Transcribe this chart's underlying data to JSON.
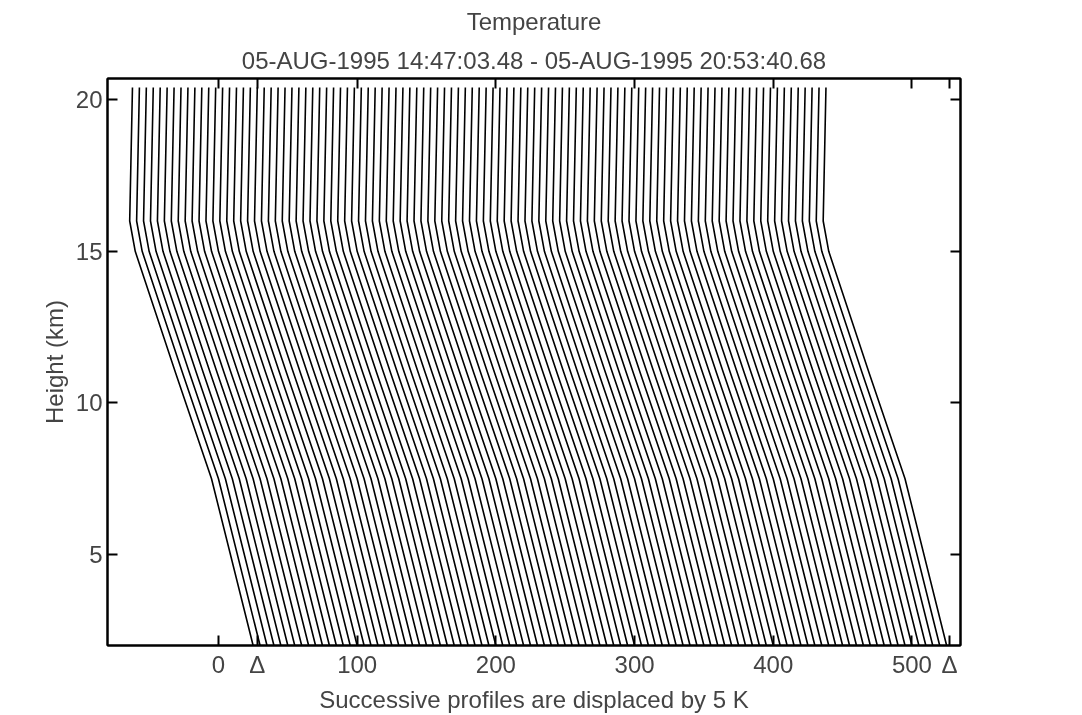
{
  "chart_data": {
    "type": "line",
    "title": "Temperature",
    "subtitle": "05-AUG-1995 14:47:03.48 - 05-AUG-1995 20:53:40.68",
    "xlabel": "Successive profiles are displaced by 5 K",
    "ylabel": "Height (km)",
    "xlim": [
      -80,
      535
    ],
    "ylim": [
      2,
      20.7
    ],
    "xticks": [
      0,
      {
        "value": 28,
        "label": "Δ"
      },
      100,
      200,
      300,
      400,
      500,
      {
        "value": 527,
        "label": "Δ"
      }
    ],
    "yticks": [
      5,
      10,
      15,
      20
    ],
    "grid": false,
    "line_style": "solid",
    "series": [
      {
        "color": "#000000",
        "x": [
          25,
          -5,
          -31,
          -60,
          -64,
          -62
        ],
        "values": [
          2,
          7.5,
          11,
          15,
          16,
          20.4
        ]
      },
      {
        "color": "#000000",
        "x": [
          30,
          0,
          -26,
          -55,
          -59,
          -57
        ],
        "values": [
          2,
          7.5,
          11,
          15,
          16,
          20.4
        ]
      },
      {
        "color": "#000000",
        "x": [
          35,
          5,
          -21,
          -50,
          -54,
          -52
        ],
        "values": [
          2,
          7.5,
          11,
          15,
          16,
          20.4
        ]
      },
      {
        "color": "#000000",
        "x": [
          40,
          10,
          -16,
          -45,
          -49,
          -47
        ],
        "values": [
          2,
          7.5,
          11,
          15,
          16,
          20.4
        ]
      },
      {
        "color": "#000000",
        "x": [
          45,
          15,
          -11,
          -40,
          -44,
          -42
        ],
        "values": [
          2,
          7.5,
          11,
          15,
          16,
          20.4
        ]
      },
      {
        "color": "#000000",
        "x": [
          50,
          20,
          -6,
          -35,
          -39,
          -37
        ],
        "values": [
          2,
          7.5,
          11,
          15,
          16,
          20.4
        ]
      },
      {
        "color": "#000000",
        "x": [
          55,
          25,
          -1,
          -30,
          -34,
          -32
        ],
        "values": [
          2,
          7.5,
          11,
          15,
          16,
          20.4
        ]
      },
      {
        "color": "#000000",
        "x": [
          60,
          30,
          4,
          -25,
          -29,
          -27
        ],
        "values": [
          2,
          7.5,
          11,
          15,
          16,
          20.4
        ]
      },
      {
        "color": "#000000",
        "x": [
          65,
          35,
          9,
          -20,
          -24,
          -22
        ],
        "values": [
          2,
          7.5,
          11,
          15,
          16,
          20.4
        ]
      },
      {
        "color": "#000000",
        "x": [
          70,
          40,
          14,
          -15,
          -19,
          -17
        ],
        "values": [
          2,
          7.5,
          11,
          15,
          16,
          20.4
        ]
      },
      {
        "color": "#000000",
        "x": [
          75,
          45,
          19,
          -10,
          -14,
          -12
        ],
        "values": [
          2,
          7.5,
          11,
          15,
          16,
          20.4
        ]
      },
      {
        "color": "#000000",
        "x": [
          80,
          50,
          24,
          -5,
          -9,
          -7
        ],
        "values": [
          2,
          7.5,
          11,
          15,
          16,
          20.4
        ]
      },
      {
        "color": "#000000",
        "x": [
          85,
          55,
          29,
          0,
          -4,
          -2
        ],
        "values": [
          2,
          7.5,
          11,
          15,
          16,
          20.4
        ]
      },
      {
        "color": "#000000",
        "x": [
          90,
          60,
          34,
          5,
          1,
          3
        ],
        "values": [
          2,
          7.5,
          11,
          15,
          16,
          20.4
        ]
      },
      {
        "color": "#000000",
        "x": [
          95,
          65,
          39,
          10,
          6,
          8
        ],
        "values": [
          2,
          7.5,
          11,
          15,
          16,
          20.4
        ]
      },
      {
        "color": "#000000",
        "x": [
          100,
          70,
          44,
          15,
          11,
          13
        ],
        "values": [
          2,
          7.5,
          11,
          15,
          16,
          20.4
        ]
      },
      {
        "color": "#000000",
        "x": [
          105,
          75,
          49,
          20,
          16,
          18
        ],
        "values": [
          2,
          7.5,
          11,
          15,
          16,
          20.4
        ]
      },
      {
        "color": "#000000",
        "x": [
          110,
          80,
          54,
          25,
          21,
          23
        ],
        "values": [
          2,
          7.5,
          11,
          15,
          16,
          20.4
        ]
      },
      {
        "color": "#000000",
        "x": [
          115,
          85,
          59,
          30,
          26,
          28
        ],
        "values": [
          2,
          7.5,
          11,
          15,
          16,
          20.4
        ]
      },
      {
        "color": "#000000",
        "x": [
          120,
          90,
          64,
          35,
          31,
          33
        ],
        "values": [
          2,
          7.5,
          11,
          15,
          16,
          20.4
        ]
      },
      {
        "color": "#000000",
        "x": [
          125,
          95,
          69,
          40,
          36,
          38
        ],
        "values": [
          2,
          7.5,
          11,
          15,
          16,
          20.4
        ]
      },
      {
        "color": "#000000",
        "x": [
          130,
          100,
          74,
          45,
          41,
          43
        ],
        "values": [
          2,
          7.5,
          11,
          15,
          16,
          20.4
        ]
      },
      {
        "color": "#000000",
        "x": [
          135,
          105,
          79,
          50,
          46,
          48
        ],
        "values": [
          2,
          7.5,
          11,
          15,
          16,
          20.4
        ]
      },
      {
        "color": "#000000",
        "x": [
          140,
          110,
          84,
          55,
          51,
          53
        ],
        "values": [
          2,
          7.5,
          11,
          15,
          16,
          20.4
        ]
      },
      {
        "color": "#000000",
        "x": [
          145,
          115,
          89,
          60,
          56,
          58
        ],
        "values": [
          2,
          7.5,
          11,
          15,
          16,
          20.4
        ]
      },
      {
        "color": "#000000",
        "x": [
          150,
          120,
          94,
          65,
          61,
          63
        ],
        "values": [
          2,
          7.5,
          11,
          15,
          16,
          20.4
        ]
      },
      {
        "color": "#000000",
        "x": [
          155,
          125,
          99,
          70,
          66,
          68
        ],
        "values": [
          2,
          7.5,
          11,
          15,
          16,
          20.4
        ]
      },
      {
        "color": "#000000",
        "x": [
          160,
          130,
          104,
          75,
          71,
          73
        ],
        "values": [
          2,
          7.5,
          11,
          15,
          16,
          20.4
        ]
      },
      {
        "color": "#000000",
        "x": [
          165,
          135,
          109,
          80,
          76,
          78
        ],
        "values": [
          2,
          7.5,
          11,
          15,
          16,
          20.4
        ]
      },
      {
        "color": "#000000",
        "x": [
          170,
          140,
          114,
          85,
          81,
          83
        ],
        "values": [
          2,
          7.5,
          11,
          15,
          16,
          20.4
        ]
      },
      {
        "color": "#000000",
        "x": [
          175,
          145,
          119,
          90,
          86,
          88
        ],
        "values": [
          2,
          7.5,
          11,
          15,
          16,
          20.4
        ]
      },
      {
        "color": "#000000",
        "x": [
          180,
          150,
          124,
          95,
          91,
          93
        ],
        "values": [
          2,
          7.5,
          11,
          15,
          16,
          20.4
        ]
      },
      {
        "color": "#000000",
        "x": [
          185,
          155,
          129,
          100,
          96,
          98
        ],
        "values": [
          2,
          7.5,
          11,
          15,
          16,
          20.4
        ]
      },
      {
        "color": "#000000",
        "x": [
          190,
          160,
          134,
          105,
          101,
          103
        ],
        "values": [
          2,
          7.5,
          11,
          15,
          16,
          20.4
        ]
      },
      {
        "color": "#000000",
        "x": [
          195,
          165,
          139,
          110,
          106,
          108
        ],
        "values": [
          2,
          7.5,
          11,
          15,
          16,
          20.4
        ]
      },
      {
        "color": "#000000",
        "x": [
          200,
          170,
          144,
          115,
          111,
          113
        ],
        "values": [
          2,
          7.5,
          11,
          15,
          16,
          20.4
        ]
      },
      {
        "color": "#000000",
        "x": [
          205,
          175,
          149,
          120,
          116,
          118
        ],
        "values": [
          2,
          7.5,
          11,
          15,
          16,
          20.4
        ]
      },
      {
        "color": "#000000",
        "x": [
          210,
          180,
          154,
          125,
          121,
          123
        ],
        "values": [
          2,
          7.5,
          11,
          15,
          16,
          20.4
        ]
      },
      {
        "color": "#000000",
        "x": [
          215,
          185,
          159,
          130,
          126,
          128
        ],
        "values": [
          2,
          7.5,
          11,
          15,
          16,
          20.4
        ]
      },
      {
        "color": "#000000",
        "x": [
          220,
          190,
          164,
          135,
          131,
          133
        ],
        "values": [
          2,
          7.5,
          11,
          15,
          16,
          20.4
        ]
      },
      {
        "color": "#000000",
        "x": [
          225,
          195,
          169,
          140,
          136,
          138
        ],
        "values": [
          2,
          7.5,
          11,
          15,
          16,
          20.4
        ]
      },
      {
        "color": "#000000",
        "x": [
          230,
          200,
          174,
          145,
          141,
          143
        ],
        "values": [
          2,
          7.5,
          11,
          15,
          16,
          20.4
        ]
      },
      {
        "color": "#000000",
        "x": [
          235,
          205,
          179,
          150,
          146,
          148
        ],
        "values": [
          2,
          7.5,
          11,
          15,
          16,
          20.4
        ]
      },
      {
        "color": "#000000",
        "x": [
          240,
          210,
          184,
          155,
          151,
          153
        ],
        "values": [
          2,
          7.5,
          11,
          15,
          16,
          20.4
        ]
      },
      {
        "color": "#000000",
        "x": [
          245,
          215,
          189,
          160,
          156,
          158
        ],
        "values": [
          2,
          7.5,
          11,
          15,
          16,
          20.4
        ]
      },
      {
        "color": "#000000",
        "x": [
          250,
          220,
          194,
          165,
          161,
          163
        ],
        "values": [
          2,
          7.5,
          11,
          15,
          16,
          20.4
        ]
      },
      {
        "color": "#000000",
        "x": [
          255,
          225,
          199,
          170,
          166,
          168
        ],
        "values": [
          2,
          7.5,
          11,
          15,
          16,
          20.4
        ]
      },
      {
        "color": "#000000",
        "x": [
          260,
          230,
          204,
          175,
          171,
          173
        ],
        "values": [
          2,
          7.5,
          11,
          15,
          16,
          20.4
        ]
      },
      {
        "color": "#000000",
        "x": [
          265,
          235,
          209,
          180,
          176,
          178
        ],
        "values": [
          2,
          7.5,
          11,
          15,
          16,
          20.4
        ]
      },
      {
        "color": "#000000",
        "x": [
          270,
          240,
          214,
          185,
          181,
          183
        ],
        "values": [
          2,
          7.5,
          11,
          15,
          16,
          20.4
        ]
      },
      {
        "color": "#000000",
        "x": [
          275,
          245,
          219,
          190,
          186,
          188
        ],
        "values": [
          2,
          7.5,
          11,
          15,
          16,
          20.4
        ]
      },
      {
        "color": "#000000",
        "x": [
          280,
          250,
          224,
          195,
          191,
          193
        ],
        "values": [
          2,
          7.5,
          11,
          15,
          16,
          20.4
        ]
      },
      {
        "color": "#000000",
        "x": [
          285,
          255,
          229,
          200,
          196,
          198
        ],
        "values": [
          2,
          7.5,
          11,
          15,
          16,
          20.4
        ]
      },
      {
        "color": "#000000",
        "x": [
          290,
          260,
          234,
          205,
          201,
          203
        ],
        "values": [
          2,
          7.5,
          11,
          15,
          16,
          20.4
        ]
      },
      {
        "color": "#000000",
        "x": [
          295,
          265,
          239,
          210,
          206,
          208
        ],
        "values": [
          2,
          7.5,
          11,
          15,
          16,
          20.4
        ]
      },
      {
        "color": "#000000",
        "x": [
          300,
          270,
          244,
          215,
          211,
          213
        ],
        "values": [
          2,
          7.5,
          11,
          15,
          16,
          20.4
        ]
      },
      {
        "color": "#000000",
        "x": [
          305,
          275,
          249,
          220,
          216,
          218
        ],
        "values": [
          2,
          7.5,
          11,
          15,
          16,
          20.4
        ]
      },
      {
        "color": "#000000",
        "x": [
          310,
          280,
          254,
          225,
          221,
          223
        ],
        "values": [
          2,
          7.5,
          11,
          15,
          16,
          20.4
        ]
      },
      {
        "color": "#000000",
        "x": [
          315,
          285,
          259,
          230,
          226,
          228
        ],
        "values": [
          2,
          7.5,
          11,
          15,
          16,
          20.4
        ]
      },
      {
        "color": "#000000",
        "x": [
          320,
          290,
          264,
          235,
          231,
          233
        ],
        "values": [
          2,
          7.5,
          11,
          15,
          16,
          20.4
        ]
      },
      {
        "color": "#000000",
        "x": [
          325,
          295,
          269,
          240,
          236,
          238
        ],
        "values": [
          2,
          7.5,
          11,
          15,
          16,
          20.4
        ]
      },
      {
        "color": "#000000",
        "x": [
          330,
          300,
          274,
          245,
          241,
          243
        ],
        "values": [
          2,
          7.5,
          11,
          15,
          16,
          20.4
        ]
      },
      {
        "color": "#000000",
        "x": [
          335,
          305,
          279,
          250,
          246,
          248
        ],
        "values": [
          2,
          7.5,
          11,
          15,
          16,
          20.4
        ]
      },
      {
        "color": "#000000",
        "x": [
          340,
          310,
          284,
          255,
          251,
          253
        ],
        "values": [
          2,
          7.5,
          11,
          15,
          16,
          20.4
        ]
      },
      {
        "color": "#000000",
        "x": [
          345,
          315,
          289,
          260,
          256,
          258
        ],
        "values": [
          2,
          7.5,
          11,
          15,
          16,
          20.4
        ]
      },
      {
        "color": "#000000",
        "x": [
          350,
          320,
          294,
          265,
          261,
          263
        ],
        "values": [
          2,
          7.5,
          11,
          15,
          16,
          20.4
        ]
      },
      {
        "color": "#000000",
        "x": [
          355,
          325,
          299,
          270,
          266,
          268
        ],
        "values": [
          2,
          7.5,
          11,
          15,
          16,
          20.4
        ]
      },
      {
        "color": "#000000",
        "x": [
          360,
          330,
          304,
          275,
          271,
          273
        ],
        "values": [
          2,
          7.5,
          11,
          15,
          16,
          20.4
        ]
      },
      {
        "color": "#000000",
        "x": [
          365,
          335,
          309,
          280,
          276,
          278
        ],
        "values": [
          2,
          7.5,
          11,
          15,
          16,
          20.4
        ]
      },
      {
        "color": "#000000",
        "x": [
          370,
          340,
          314,
          285,
          281,
          283
        ],
        "values": [
          2,
          7.5,
          11,
          15,
          16,
          20.4
        ]
      },
      {
        "color": "#000000",
        "x": [
          375,
          345,
          319,
          290,
          286,
          288
        ],
        "values": [
          2,
          7.5,
          11,
          15,
          16,
          20.4
        ]
      },
      {
        "color": "#000000",
        "x": [
          380,
          350,
          324,
          295,
          291,
          293
        ],
        "values": [
          2,
          7.5,
          11,
          15,
          16,
          20.4
        ]
      },
      {
        "color": "#000000",
        "x": [
          385,
          355,
          329,
          300,
          296,
          298
        ],
        "values": [
          2,
          7.5,
          11,
          15,
          16,
          20.4
        ]
      },
      {
        "color": "#000000",
        "x": [
          390,
          360,
          334,
          305,
          301,
          303
        ],
        "values": [
          2,
          7.5,
          11,
          15,
          16,
          20.4
        ]
      },
      {
        "color": "#000000",
        "x": [
          395,
          365,
          339,
          310,
          306,
          308
        ],
        "values": [
          2,
          7.5,
          11,
          15,
          16,
          20.4
        ]
      },
      {
        "color": "#000000",
        "x": [
          400,
          370,
          344,
          315,
          311,
          313
        ],
        "values": [
          2,
          7.5,
          11,
          15,
          16,
          20.4
        ]
      },
      {
        "color": "#000000",
        "x": [
          405,
          375,
          349,
          320,
          316,
          318
        ],
        "values": [
          2,
          7.5,
          11,
          15,
          16,
          20.4
        ]
      },
      {
        "color": "#000000",
        "x": [
          410,
          380,
          354,
          325,
          321,
          323
        ],
        "values": [
          2,
          7.5,
          11,
          15,
          16,
          20.4
        ]
      },
      {
        "color": "#000000",
        "x": [
          415,
          385,
          359,
          330,
          326,
          328
        ],
        "values": [
          2,
          7.5,
          11,
          15,
          16,
          20.4
        ]
      },
      {
        "color": "#000000",
        "x": [
          420,
          390,
          364,
          335,
          331,
          333
        ],
        "values": [
          2,
          7.5,
          11,
          15,
          16,
          20.4
        ]
      },
      {
        "color": "#000000",
        "x": [
          425,
          395,
          369,
          340,
          336,
          338
        ],
        "values": [
          2,
          7.5,
          11,
          15,
          16,
          20.4
        ]
      },
      {
        "color": "#000000",
        "x": [
          430,
          400,
          374,
          345,
          341,
          343
        ],
        "values": [
          2,
          7.5,
          11,
          15,
          16,
          20.4
        ]
      },
      {
        "color": "#000000",
        "x": [
          435,
          405,
          379,
          350,
          346,
          348
        ],
        "values": [
          2,
          7.5,
          11,
          15,
          16,
          20.4
        ]
      },
      {
        "color": "#000000",
        "x": [
          440,
          410,
          384,
          355,
          351,
          353
        ],
        "values": [
          2,
          7.5,
          11,
          15,
          16,
          20.4
        ]
      },
      {
        "color": "#000000",
        "x": [
          445,
          415,
          389,
          360,
          356,
          358
        ],
        "values": [
          2,
          7.5,
          11,
          15,
          16,
          20.4
        ]
      },
      {
        "color": "#000000",
        "x": [
          450,
          420,
          394,
          365,
          361,
          363
        ],
        "values": [
          2,
          7.5,
          11,
          15,
          16,
          20.4
        ]
      },
      {
        "color": "#000000",
        "x": [
          455,
          425,
          399,
          370,
          366,
          368
        ],
        "values": [
          2,
          7.5,
          11,
          15,
          16,
          20.4
        ]
      },
      {
        "color": "#000000",
        "x": [
          460,
          430,
          404,
          375,
          371,
          373
        ],
        "values": [
          2,
          7.5,
          11,
          15,
          16,
          20.4
        ]
      },
      {
        "color": "#000000",
        "x": [
          465,
          435,
          409,
          380,
          376,
          378
        ],
        "values": [
          2,
          7.5,
          11,
          15,
          16,
          20.4
        ]
      },
      {
        "color": "#000000",
        "x": [
          470,
          440,
          414,
          385,
          381,
          383
        ],
        "values": [
          2,
          7.5,
          11,
          15,
          16,
          20.4
        ]
      },
      {
        "color": "#000000",
        "x": [
          475,
          445,
          419,
          390,
          386,
          388
        ],
        "values": [
          2,
          7.5,
          11,
          15,
          16,
          20.4
        ]
      },
      {
        "color": "#000000",
        "x": [
          480,
          450,
          424,
          395,
          391,
          393
        ],
        "values": [
          2,
          7.5,
          11,
          15,
          16,
          20.4
        ]
      },
      {
        "color": "#000000",
        "x": [
          485,
          455,
          429,
          400,
          396,
          398
        ],
        "values": [
          2,
          7.5,
          11,
          15,
          16,
          20.4
        ]
      },
      {
        "color": "#000000",
        "x": [
          490,
          460,
          434,
          405,
          401,
          403
        ],
        "values": [
          2,
          7.5,
          11,
          15,
          16,
          20.4
        ]
      },
      {
        "color": "#000000",
        "x": [
          495,
          465,
          439,
          410,
          406,
          408
        ],
        "values": [
          2,
          7.5,
          11,
          15,
          16,
          20.4
        ]
      },
      {
        "color": "#000000",
        "x": [
          500,
          470,
          444,
          415,
          411,
          413
        ],
        "values": [
          2,
          7.5,
          11,
          15,
          16,
          20.4
        ]
      },
      {
        "color": "#000000",
        "x": [
          505,
          475,
          449,
          420,
          416,
          418
        ],
        "values": [
          2,
          7.5,
          11,
          15,
          16,
          20.4
        ]
      },
      {
        "color": "#000000",
        "x": [
          510,
          480,
          454,
          425,
          421,
          423
        ],
        "values": [
          2,
          7.5,
          11,
          15,
          16,
          20.4
        ]
      },
      {
        "color": "#000000",
        "x": [
          515,
          485,
          459,
          430,
          426,
          428
        ],
        "values": [
          2,
          7.5,
          11,
          15,
          16,
          20.4
        ]
      },
      {
        "color": "#000000",
        "x": [
          520,
          490,
          464,
          435,
          431,
          433
        ],
        "values": [
          2,
          7.5,
          11,
          15,
          16,
          20.4
        ]
      },
      {
        "color": "#000000",
        "x": [
          525,
          495,
          469,
          440,
          436,
          438
        ],
        "values": [
          2,
          7.5,
          11,
          15,
          16,
          20.4
        ]
      }
    ]
  }
}
